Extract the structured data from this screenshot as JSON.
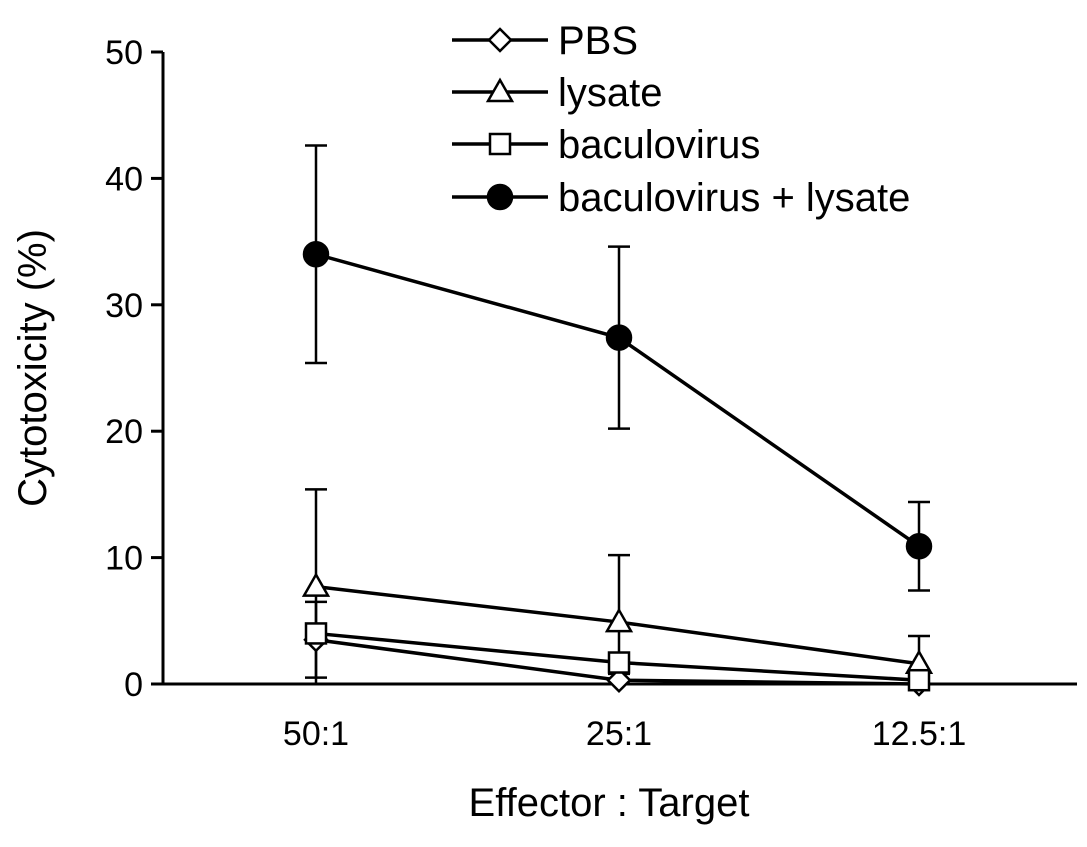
{
  "chart_data": {
    "type": "line",
    "title": "",
    "xlabel": "Effector : Target",
    "ylabel": "Cytotoxicity (%)",
    "categories": [
      "50:1",
      "25:1",
      "12.5:1"
    ],
    "ylim": [
      0,
      50
    ],
    "yticks": [
      "0",
      "10",
      "20",
      "30",
      "40",
      "50"
    ],
    "grid": false,
    "legend_position": "top-right",
    "series": [
      {
        "name": "PBS",
        "marker": "diamond-open",
        "values": [
          3.5,
          0.3,
          0.0
        ],
        "error": [
          3.0,
          0.5,
          0.3
        ]
      },
      {
        "name": "lysate",
        "marker": "triangle-open",
        "values": [
          7.7,
          4.9,
          1.6
        ],
        "error": [
          7.7,
          5.3,
          2.2
        ]
      },
      {
        "name": "baculovirus",
        "marker": "square-open",
        "values": [
          4.0,
          1.7,
          0.3
        ],
        "error": [
          0.0,
          0.0,
          0.0
        ]
      },
      {
        "name": "baculovirus + lysate",
        "marker": "circle-filled",
        "values": [
          34.0,
          27.4,
          10.9
        ],
        "error": [
          8.6,
          7.2,
          3.5
        ]
      }
    ]
  }
}
